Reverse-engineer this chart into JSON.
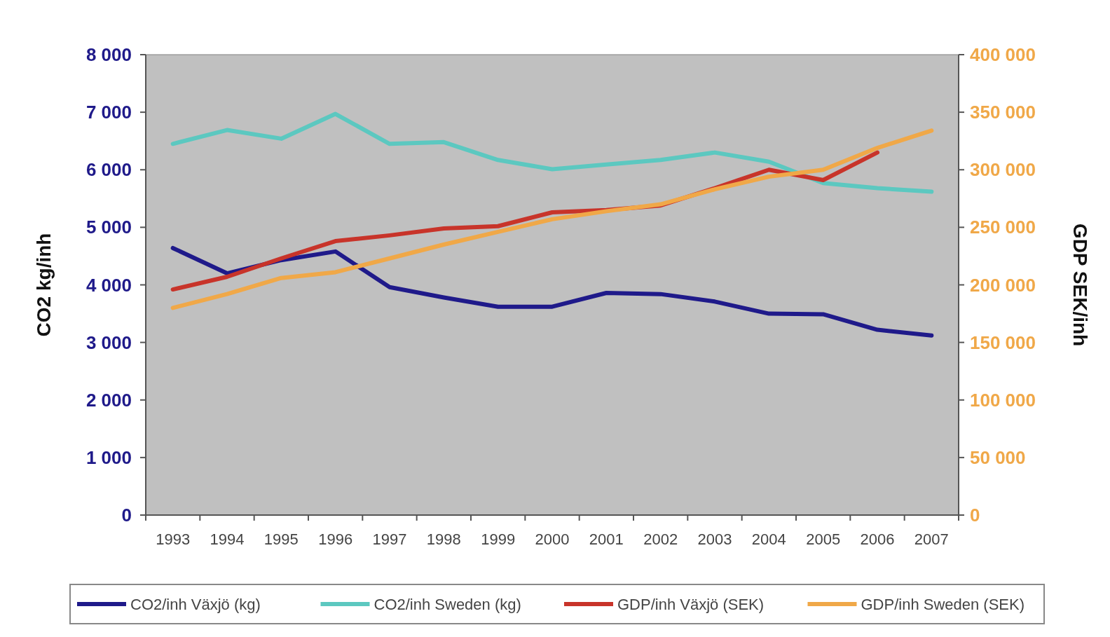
{
  "chart_data": {
    "type": "line",
    "ylabel": "CO2 kg/inh",
    "y2label": "GDP SEK/inh",
    "categories": [
      "1993",
      "1994",
      "1995",
      "1996",
      "1997",
      "1998",
      "1999",
      "2000",
      "2001",
      "2002",
      "2003",
      "2004",
      "2005",
      "2006",
      "2007"
    ],
    "series": [
      {
        "name": "CO2/inh Växjö (kg)",
        "color": "#1f1a8a",
        "values": [
          4640,
          4200,
          4430,
          4580,
          3960,
          3780,
          3620,
          3620,
          3860,
          3840,
          3710,
          3500,
          3490,
          3220,
          3120
        ]
      },
      {
        "name": "CO2/inh Sweden (kg)",
        "color": "#5cc8c0",
        "values": [
          6450,
          6690,
          6540,
          6970,
          6450,
          6480,
          6170,
          6010,
          6090,
          6170,
          6300,
          6140,
          5770,
          5680,
          5620
        ]
      },
      {
        "name": "GDP/inh Växjö (SEK)",
        "color": "#c8342a",
        "axis": "y2",
        "values": [
          196000,
          207000,
          223000,
          238000,
          243000,
          249000,
          251000,
          263000,
          265000,
          269000,
          284000,
          300000,
          291000,
          315000,
          null
        ]
      },
      {
        "name": "GDP/inh Sweden (SEK)",
        "color": "#f0a848",
        "axis": "y2",
        "values": [
          180000,
          192000,
          206000,
          211000,
          223000,
          235000,
          246000,
          257000,
          264000,
          270000,
          283000,
          294000,
          300000,
          319000,
          334000
        ]
      }
    ],
    "ylim": [
      0,
      8000
    ],
    "yticks": [
      {
        "value": 0,
        "label": "0"
      },
      {
        "value": 1000,
        "label": "1 000"
      },
      {
        "value": 2000,
        "label": "2 000"
      },
      {
        "value": 3000,
        "label": "3 000"
      },
      {
        "value": 4000,
        "label": "4 000"
      },
      {
        "value": 5000,
        "label": "5 000"
      },
      {
        "value": 6000,
        "label": "6 000"
      },
      {
        "value": 7000,
        "label": "7 000"
      },
      {
        "value": 8000,
        "label": "8 000"
      }
    ],
    "y2lim": [
      0,
      400000
    ],
    "y2ticks": [
      {
        "value": 0,
        "label": "0"
      },
      {
        "value": 50000,
        "label": "50 000"
      },
      {
        "value": 100000,
        "label": "100 000"
      },
      {
        "value": 150000,
        "label": "150 000"
      },
      {
        "value": 200000,
        "label": "200 000"
      },
      {
        "value": 250000,
        "label": "250 000"
      },
      {
        "value": 300000,
        "label": "300 000"
      },
      {
        "value": 350000,
        "label": "350 000"
      },
      {
        "value": 400000,
        "label": "400 000"
      }
    ],
    "legend": "bottom",
    "marker": "none",
    "line_style": "solid"
  }
}
